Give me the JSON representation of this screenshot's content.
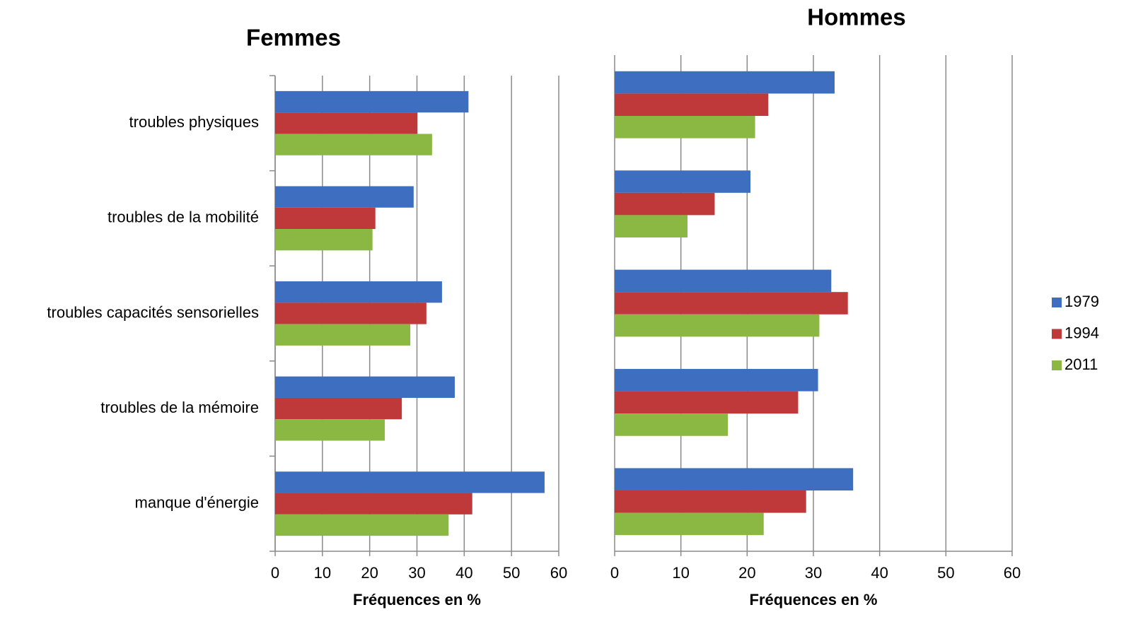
{
  "chart_data": [
    {
      "type": "hbar",
      "title": "Femmes",
      "x_label": "Fréquences en %",
      "categories": [
        "troubles physiques",
        "troubles de la mobilité",
        "troubles capacités sensorielles",
        "troubles de la mémoire",
        "manque d'énergie"
      ],
      "series": [
        {
          "color": "#3d6ebf",
          "values": [
            40.9,
            29.3,
            35.3,
            38.0,
            57.0
          ]
        },
        {
          "color": "#c0393a",
          "values": [
            30.1,
            21.2,
            32.0,
            26.8,
            41.7
          ]
        },
        {
          "color": "#8ab843",
          "values": [
            33.2,
            20.6,
            28.6,
            23.2,
            36.7
          ]
        }
      ],
      "xlim": [
        0,
        60
      ],
      "xticks": [
        0,
        10,
        20,
        30,
        40,
        50,
        60
      ],
      "grid": true,
      "legend": false
    },
    {
      "type": "hbar",
      "title": "Hommes",
      "x_label": "Fréquences en %",
      "categories": [
        null,
        null,
        null,
        null,
        null
      ],
      "series": [
        {
          "name": "1979",
          "color": "#3d6ebf",
          "values": [
            33.2,
            20.5,
            32.7,
            30.7,
            36.0
          ]
        },
        {
          "name": "1994",
          "color": "#c0393a",
          "values": [
            23.2,
            15.1,
            35.2,
            27.7,
            28.9
          ]
        },
        {
          "name": "2011",
          "color": "#8ab843",
          "values": [
            21.2,
            11.0,
            30.9,
            17.1,
            22.5
          ]
        }
      ],
      "xlim": [
        0,
        60
      ],
      "xticks": [
        0,
        10,
        20,
        30,
        40,
        50,
        60
      ],
      "grid": true,
      "legend": "right"
    }
  ]
}
